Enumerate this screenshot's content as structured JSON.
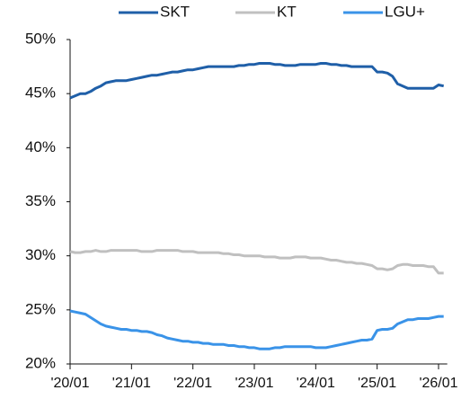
{
  "chart_data": {
    "type": "line",
    "categories": [
      "'20/01",
      null,
      null,
      null,
      null,
      null,
      null,
      null,
      null,
      null,
      null,
      null,
      "'21/01",
      null,
      null,
      null,
      null,
      null,
      null,
      null,
      null,
      null,
      null,
      null,
      "'22/01",
      null,
      null,
      null,
      null,
      null,
      null,
      null,
      null,
      null,
      null,
      null,
      "'23/01",
      null,
      null,
      null,
      null,
      null,
      null,
      null,
      null,
      null,
      null,
      null,
      "'24/01",
      null,
      null,
      null,
      null,
      null,
      null,
      null,
      null,
      null,
      null,
      null,
      "'25/01",
      null,
      null,
      null,
      null,
      null,
      null,
      null,
      null,
      null,
      null,
      null,
      "'26/01",
      null
    ],
    "series": [
      {
        "name": "SKT",
        "color": "#1f5fa8",
        "values": [
          44.6,
          44.8,
          45.0,
          45.0,
          45.2,
          45.5,
          45.7,
          46.0,
          46.1,
          46.2,
          46.2,
          46.2,
          46.3,
          46.4,
          46.5,
          46.6,
          46.7,
          46.7,
          46.8,
          46.9,
          47.0,
          47.0,
          47.1,
          47.2,
          47.2,
          47.3,
          47.4,
          47.5,
          47.5,
          47.5,
          47.5,
          47.5,
          47.5,
          47.6,
          47.6,
          47.7,
          47.7,
          47.8,
          47.8,
          47.8,
          47.7,
          47.7,
          47.6,
          47.6,
          47.6,
          47.7,
          47.7,
          47.7,
          47.7,
          47.8,
          47.8,
          47.7,
          47.7,
          47.6,
          47.6,
          47.5,
          47.5,
          47.5,
          47.5,
          47.5,
          47.0,
          47.0,
          46.9,
          46.6,
          45.9,
          45.7,
          45.5,
          45.5,
          45.5,
          45.5,
          45.5,
          45.5,
          45.8,
          45.7
        ]
      },
      {
        "name": "KT",
        "color": "#c0c0c0",
        "values": [
          30.4,
          30.3,
          30.3,
          30.4,
          30.4,
          30.5,
          30.4,
          30.4,
          30.5,
          30.5,
          30.5,
          30.5,
          30.5,
          30.5,
          30.4,
          30.4,
          30.4,
          30.5,
          30.5,
          30.5,
          30.5,
          30.5,
          30.4,
          30.4,
          30.4,
          30.3,
          30.3,
          30.3,
          30.3,
          30.3,
          30.2,
          30.2,
          30.1,
          30.1,
          30.0,
          30.0,
          30.0,
          30.0,
          29.9,
          29.9,
          29.9,
          29.8,
          29.8,
          29.8,
          29.9,
          29.9,
          29.9,
          29.8,
          29.8,
          29.8,
          29.7,
          29.6,
          29.6,
          29.5,
          29.4,
          29.4,
          29.3,
          29.3,
          29.2,
          29.1,
          28.8,
          28.8,
          28.7,
          28.8,
          29.1,
          29.2,
          29.2,
          29.1,
          29.1,
          29.1,
          29.0,
          29.0,
          28.4,
          28.4
        ]
      },
      {
        "name": "LGU+",
        "color": "#3a93e8",
        "values": [
          24.9,
          24.8,
          24.7,
          24.6,
          24.3,
          24.0,
          23.7,
          23.5,
          23.4,
          23.3,
          23.2,
          23.2,
          23.1,
          23.1,
          23.0,
          23.0,
          22.9,
          22.7,
          22.6,
          22.4,
          22.3,
          22.2,
          22.1,
          22.1,
          22.0,
          22.0,
          21.9,
          21.9,
          21.8,
          21.8,
          21.8,
          21.7,
          21.7,
          21.6,
          21.6,
          21.5,
          21.5,
          21.4,
          21.4,
          21.4,
          21.5,
          21.5,
          21.6,
          21.6,
          21.6,
          21.6,
          21.6,
          21.6,
          21.5,
          21.5,
          21.5,
          21.6,
          21.7,
          21.8,
          21.9,
          22.0,
          22.1,
          22.2,
          22.2,
          22.3,
          23.1,
          23.2,
          23.2,
          23.3,
          23.7,
          23.9,
          24.1,
          24.1,
          24.2,
          24.2,
          24.2,
          24.3,
          24.4,
          24.4
        ]
      }
    ],
    "ylim": [
      20,
      50
    ],
    "yticks": [
      {
        "value": 20,
        "label": "20%"
      },
      {
        "value": 25,
        "label": "25%"
      },
      {
        "value": 30,
        "label": "30%"
      },
      {
        "value": 35,
        "label": "35%"
      },
      {
        "value": 40,
        "label": "40%"
      },
      {
        "value": 45,
        "label": "45%"
      },
      {
        "value": 50,
        "label": "50%"
      }
    ],
    "grid": false,
    "legend": "top"
  }
}
